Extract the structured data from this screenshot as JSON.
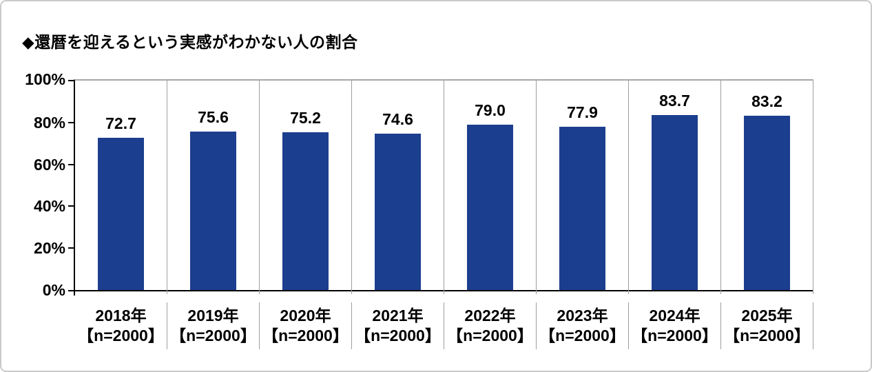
{
  "card": {
    "title": "◆還暦を迎えるという実感がわかない人の割合"
  },
  "chart_data": {
    "type": "bar",
    "title": "還暦を迎えるという実感がわかない人の割合",
    "categories": [
      "2018年",
      "2019年",
      "2020年",
      "2021年",
      "2022年",
      "2023年",
      "2024年",
      "2025年"
    ],
    "category_sublabels": [
      "【n=2000】",
      "【n=2000】",
      "【n=2000】",
      "【n=2000】",
      "【n=2000】",
      "【n=2000】",
      "【n=2000】",
      "【n=2000】"
    ],
    "values": [
      72.7,
      75.6,
      75.2,
      74.6,
      79.0,
      77.9,
      83.7,
      83.2
    ],
    "value_labels": [
      "72.7",
      "75.6",
      "75.2",
      "74.6",
      "79.0",
      "77.9",
      "83.7",
      "83.2"
    ],
    "xlabel": "",
    "ylabel": "",
    "ylim": [
      0,
      100
    ],
    "y_ticks": [
      "0%",
      "20%",
      "40%",
      "60%",
      "80%",
      "100%"
    ],
    "bar_color": "#1C3E8E",
    "axis_color": "#000000",
    "separator_color": "#9e9e9e",
    "grid": "vertical category separators only, no horizontal gridlines",
    "legend": "none",
    "value_label_position": "above bars"
  }
}
